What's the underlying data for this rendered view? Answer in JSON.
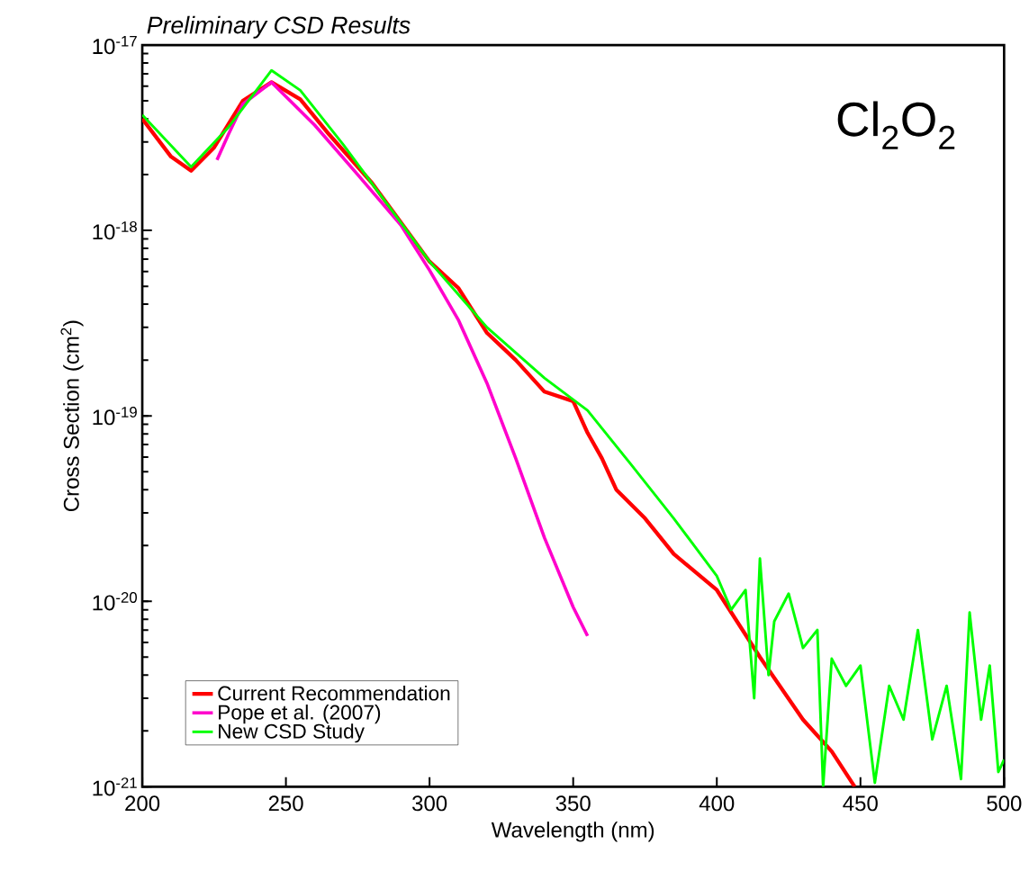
{
  "chart_data": {
    "type": "line",
    "title": "Preliminary CSD Results",
    "xlabel": "Wavelength (nm)",
    "ylabel": "Cross Section (cm$^{2}$)",
    "annotations": [
      "Cl$_{2}$O$_{2}$"
    ],
    "log": "y",
    "xlim": [
      200,
      500
    ],
    "ylim": [
      1e-21,
      1e-17
    ],
    "xticks": [
      200,
      250,
      300,
      350,
      400,
      450,
      500
    ],
    "yticks": [
      {
        "value": 1e-21,
        "label": "10$^{-21}$"
      },
      {
        "value": 1e-20,
        "label": "10$^{-20}$"
      },
      {
        "value": 1e-19,
        "label": "10$^{-19}$"
      },
      {
        "value": 1e-18,
        "label": "10$^{-18}$"
      },
      {
        "value": 1e-17,
        "label": "10$^{-17}$"
      }
    ],
    "grid": false,
    "legend": "bottom left",
    "marker": "none",
    "line_style": "solid",
    "series": [
      {
        "name": "Current Recommendation",
        "color": "#ff0000",
        "x": [
          200,
          210,
          217,
          225,
          235,
          245,
          255,
          265,
          280,
          300,
          310,
          320,
          330,
          340,
          350,
          355,
          360,
          365,
          375,
          385,
          400,
          415,
          430,
          440,
          448
        ],
        "values": [
          4e-18,
          2.5e-18,
          2.1e-18,
          2.8e-18,
          5e-18,
          6.3e-18,
          5.1e-18,
          3.3e-18,
          1.8e-18,
          6.8e-19,
          4.9e-19,
          2.8e-19,
          2e-19,
          1.35e-19,
          1.2e-19,
          8.1e-20,
          5.9e-20,
          4e-20,
          2.8e-20,
          1.8e-20,
          1.15e-20,
          5e-21,
          2.3e-21,
          1.55e-21,
          1e-21
        ]
      },
      {
        "name": "Pope et al. (2007)",
        "color": "#ff00cc",
        "x": [
          226,
          230,
          235,
          245,
          260,
          275,
          290,
          300,
          310,
          320,
          330,
          340,
          350,
          355
        ],
        "values": [
          2.4e-18,
          3.3e-18,
          4.8e-18,
          6.3e-18,
          3.7e-18,
          2e-18,
          1.07e-18,
          6.1e-19,
          3.3e-19,
          1.5e-19,
          5.9e-20,
          2.2e-20,
          9.3e-21,
          6.5e-21
        ]
      },
      {
        "name": "New CSD Study",
        "color": "#00ff00",
        "x": [
          200,
          217,
          230,
          245,
          255,
          270,
          300,
          320,
          340,
          355,
          370,
          385,
          400,
          405,
          410,
          413,
          415,
          418,
          420,
          425,
          430,
          435,
          437,
          440,
          445,
          450,
          455,
          460,
          465,
          470,
          475,
          480,
          485,
          488,
          492,
          495,
          498,
          500
        ],
        "values": [
          4.2e-18,
          2.2e-18,
          3.6e-18,
          7.3e-18,
          5.7e-18,
          2.9e-18,
          6.8e-19,
          3e-19,
          1.6e-19,
          1.07e-19,
          5.5e-20,
          2.8e-20,
          1.37e-20,
          9e-21,
          1.15e-20,
          3e-21,
          1.7e-20,
          4e-21,
          7.8e-21,
          1.1e-20,
          5.6e-21,
          7e-21,
          1e-21,
          4.9e-21,
          3.5e-21,
          4.5e-21,
          1.05e-21,
          3.5e-21,
          2.3e-21,
          7e-21,
          1.8e-21,
          3.5e-21,
          1.1e-21,
          8.7e-21,
          2.3e-21,
          4.5e-21,
          1.2e-21,
          1.4e-21
        ]
      }
    ]
  }
}
